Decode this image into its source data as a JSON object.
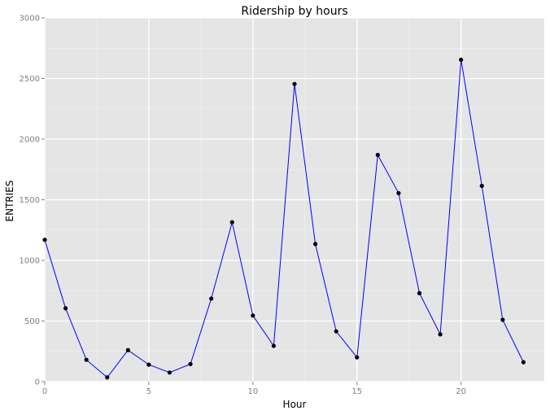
{
  "chart_data": {
    "type": "line",
    "title": "Ridership by hours",
    "xlabel": "Hour",
    "ylabel": "ENTRIES",
    "x": [
      0,
      1,
      2,
      3,
      4,
      5,
      6,
      7,
      8,
      9,
      10,
      11,
      12,
      13,
      14,
      15,
      16,
      17,
      18,
      19,
      20,
      21,
      22,
      23
    ],
    "series": [
      {
        "values": [
          1170,
          605,
          180,
          35,
          260,
          140,
          75,
          145,
          685,
          1315,
          545,
          295,
          2455,
          1135,
          415,
          200,
          1870,
          1555,
          730,
          390,
          2655,
          1615,
          510,
          160
        ]
      }
    ],
    "xlim": [
      0,
      24
    ],
    "ylim": [
      0,
      3000
    ],
    "xticks": [
      "0",
      "5",
      "10",
      "15",
      "20"
    ],
    "xtick_values": [
      0,
      5,
      10,
      15,
      20
    ],
    "yticks": [
      "0",
      "500",
      "1000",
      "1500",
      "2000",
      "2500",
      "3000"
    ],
    "ytick_values": [
      0,
      500,
      1000,
      1500,
      2000,
      2500,
      3000
    ],
    "grid": true,
    "legend": "none",
    "colors": {
      "panel_background": "#e5e5e5",
      "major_grid": "#ffffff",
      "minor_grid": "#f2f2f2",
      "line": "#0000ff",
      "point": "#000000",
      "tick_text": "#7f7f7f"
    }
  }
}
